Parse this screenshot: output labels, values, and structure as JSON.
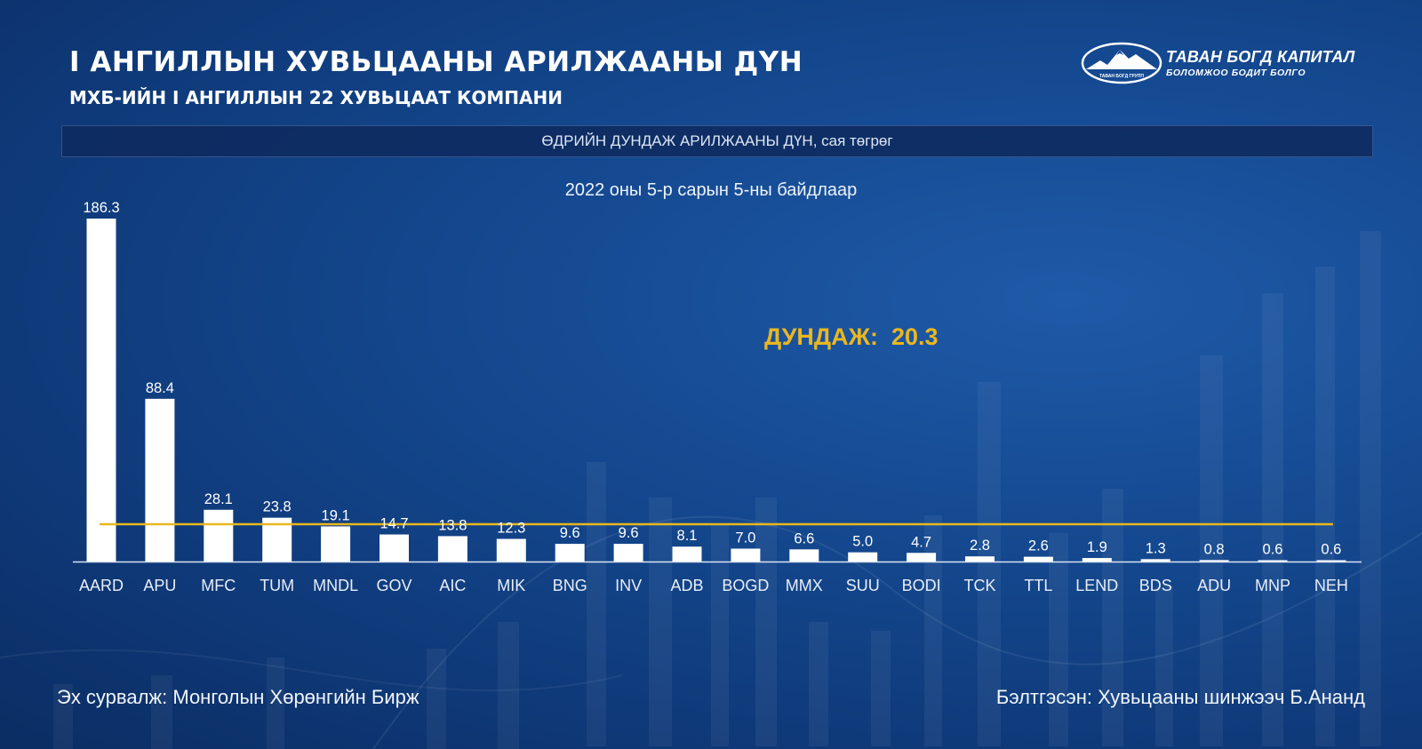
{
  "header": {
    "title": "I АНГИЛЛЫН ХУВЬЦААНЫ АРИЛЖААНЫ ДҮН",
    "subtitle": "МХБ-ИЙН I АНГИЛЛЫН 22 ХУВЬЦААТ КОМПАНИ"
  },
  "logo": {
    "name": "ТАВАН БОГД КАПИТАЛ",
    "tagline": "БОЛОМЖОО БОДИТ БОЛГО",
    "badge_text": "ТАВАН БОГД ГРУПП",
    "icon": "mountain-logo-icon"
  },
  "banner": {
    "text": "ӨДРИЙН ДУНДАЖ АРИЛЖААНЫ ДҮН, сая төгрөг"
  },
  "date_note": "2022 оны 5-р сарын 5-ны байдлаар",
  "average": {
    "label": "ДУНДАЖ:",
    "value": "20.3"
  },
  "footer": {
    "source": "Эх сурвалж: Монголын Хөрөнгийн Бирж",
    "author": "Бэлтгэсэн: Хувьцааны шинжээч Б.Ананд"
  },
  "colors": {
    "bar": "#ffffff",
    "average_line": "#e9b720",
    "background": "#154a92"
  },
  "chart_data": {
    "type": "bar",
    "title": "ӨДРИЙН ДУНДАЖ АРИЛЖААНЫ ДҮН, сая төгрөг",
    "subtitle": "2022 оны 5-р сарын 5-ны байдлаар",
    "categories": [
      "AARD",
      "APU",
      "MFC",
      "TUM",
      "MNDL",
      "GOV",
      "AIC",
      "MIK",
      "BNG",
      "INV",
      "ADB",
      "BOGD",
      "MMX",
      "SUU",
      "BODI",
      "TCK",
      "TTL",
      "LEND",
      "BDS",
      "ADU",
      "MNP",
      "NEH"
    ],
    "values": [
      186.3,
      88.4,
      28.1,
      23.8,
      19.1,
      14.7,
      13.8,
      12.3,
      9.6,
      9.6,
      8.1,
      7.0,
      6.6,
      5.0,
      4.7,
      2.8,
      2.6,
      1.9,
      1.3,
      0.8,
      0.6,
      0.6
    ],
    "value_labels": [
      "186.3",
      "88.4",
      "28.1",
      "23.8",
      "19.1",
      "14.7",
      "13.8",
      "12.3",
      "9.6",
      "9.6",
      "8.1",
      "7.0",
      "6.6",
      "5.0",
      "4.7",
      "2.8",
      "2.6",
      "1.9",
      "1.3",
      "0.8",
      "0.6",
      "0.6"
    ],
    "average_line": 20.3,
    "ylim": [
      0,
      186.3
    ],
    "grid": false,
    "legend": "none"
  }
}
